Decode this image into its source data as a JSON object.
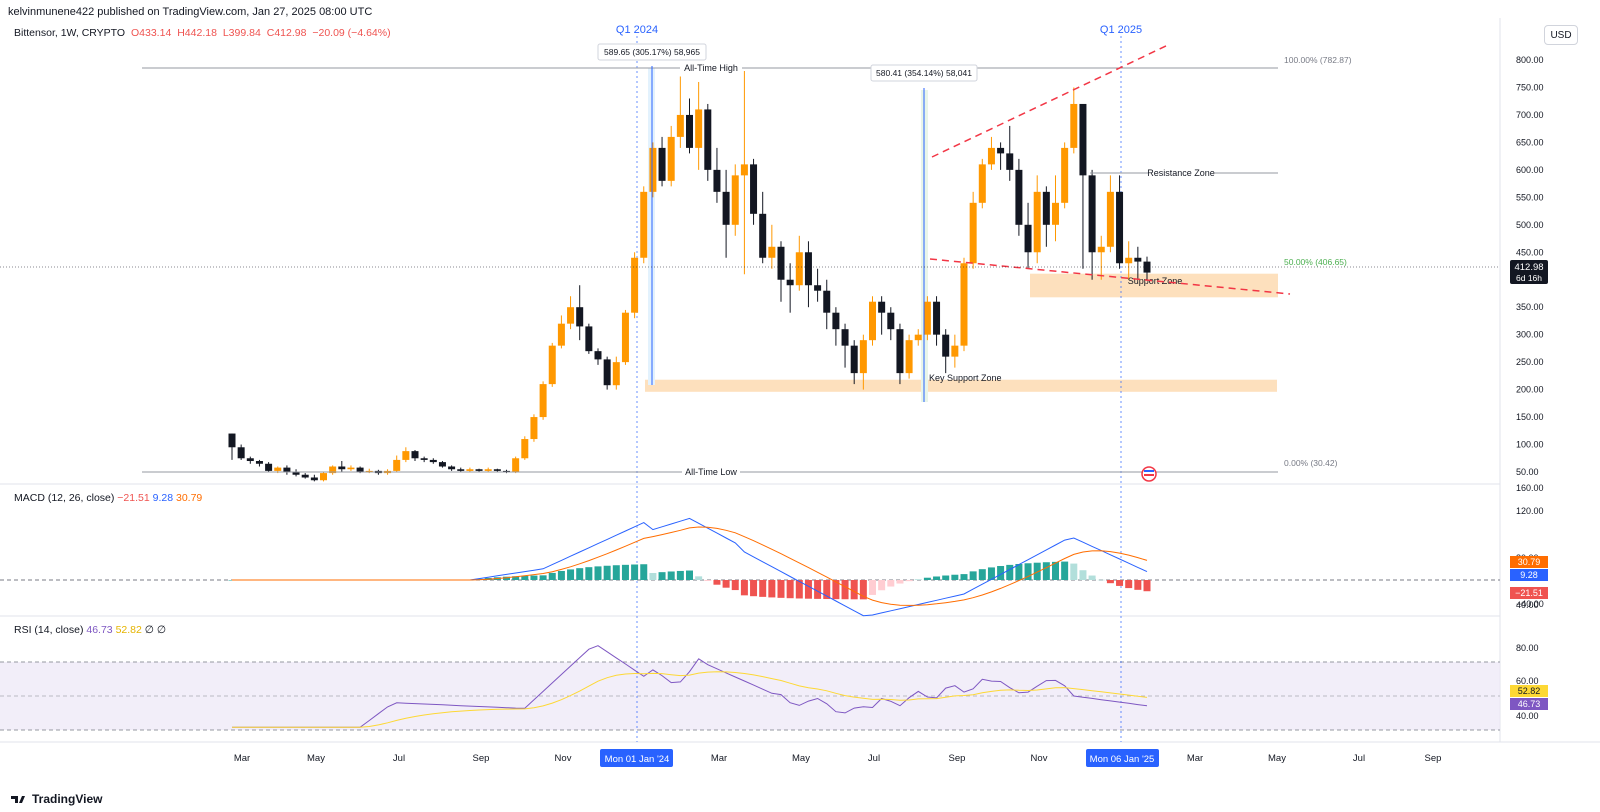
{
  "header": {
    "published_line": "kelvinmunene422 published on TradingView.com, Jan 27, 2025 08:00 UTC"
  },
  "legend": {
    "symbol": "Bittensor, 1W, CRYPTO",
    "open": "O433.14",
    "high": "H442.18",
    "low": "L399.84",
    "close": "C412.98",
    "change": "−20.09 (−4.64%)"
  },
  "currency": "USD",
  "macd": {
    "label": "MACD (12, 26, close)",
    "hist": "−21.51",
    "macd": "9.28",
    "signal": "30.79",
    "ticks": [
      "160.00",
      "120.00",
      "80.00",
      "40.00",
      "−40.00"
    ],
    "badges": {
      "signal": "30.79",
      "macd": "9.28",
      "hist": "−21.51"
    }
  },
  "rsi": {
    "label": "RSI (14, close)",
    "rsi": "46.73",
    "ma": "52.82",
    "extra1": "∅",
    "extra2": "∅",
    "ticks": [
      "80.00",
      "60.00",
      "40.00"
    ],
    "badges": {
      "ma": "52.82",
      "rsi": "46.73"
    }
  },
  "price_axis": {
    "ticks": [
      "800.00",
      "750.00",
      "700.00",
      "650.00",
      "600.00",
      "550.00",
      "500.00",
      "450.00",
      "400.00",
      "350.00",
      "300.00",
      "250.00",
      "200.00",
      "150.00",
      "100.00",
      "50.00"
    ],
    "last_price": "412.98",
    "countdown": "6d 16h"
  },
  "time_axis": {
    "labels": [
      "Mar",
      "May",
      "Jul",
      "Sep",
      "Nov",
      "Mar",
      "May",
      "Jul",
      "Sep",
      "Nov",
      "Mar",
      "May",
      "Jul",
      "Sep"
    ],
    "highlight_left": "Mon 01 Jan '24",
    "highlight_right": "Mon 06 Jan '25"
  },
  "annotations": {
    "q1_2024": "Q1 2024",
    "q1_2025": "Q1 2025",
    "measure1": "589.65 (305.17%) 58,965",
    "measure2": "580.41 (354.14%) 58,041",
    "all_time_high": "All-Time High",
    "all_time_low": "All-Time Low",
    "resistance_zone": "Resistance Zone",
    "support_zone": "Support Zone",
    "key_support_zone": "Key Support Zone",
    "fib_100": "100.00% (782.87)",
    "fib_50": "50.00% (406.65)",
    "fib_0": "0.00% (30.42)"
  },
  "footer": {
    "brand": "TradingView"
  },
  "colors": {
    "up": "#ff9800",
    "down": "#131722",
    "macd_line": "#2962ff",
    "signal_line": "#ff6d00",
    "hist_pos_strong": "#26a69a",
    "hist_pos_weak": "#b2dfdb",
    "hist_neg_strong": "#ef5350",
    "hist_neg_weak": "#ffcdd2",
    "rsi_line": "#7e57c2",
    "rsi_ma": "#fdd835",
    "zone_fill": "#fde0bd",
    "trend_dash": "#f23645",
    "highlight_blue": "#2962ff"
  },
  "chart_data": {
    "type": "candlestick",
    "title": "Bittensor, 1W, CRYPTO",
    "ylim": [
      30,
      820
    ],
    "candles": [
      [
        120,
        95,
        120,
        72
      ],
      [
        95,
        75,
        100,
        72
      ],
      [
        75,
        70,
        78,
        65
      ],
      [
        70,
        65,
        72,
        60
      ],
      [
        65,
        52,
        68,
        50
      ],
      [
        52,
        58,
        60,
        48
      ],
      [
        58,
        50,
        62,
        45
      ],
      [
        50,
        45,
        55,
        42
      ],
      [
        45,
        40,
        48,
        38
      ],
      [
        40,
        35,
        45,
        33
      ],
      [
        35,
        48,
        50,
        33
      ],
      [
        48,
        60,
        62,
        45
      ],
      [
        60,
        55,
        70,
        50
      ],
      [
        55,
        58,
        62,
        52
      ],
      [
        58,
        50,
        60,
        48
      ],
      [
        50,
        52,
        56,
        48
      ],
      [
        52,
        48,
        54,
        45
      ],
      [
        48,
        52,
        55,
        45
      ],
      [
        52,
        72,
        80,
        50
      ],
      [
        72,
        88,
        95,
        68
      ],
      [
        88,
        75,
        90,
        70
      ],
      [
        75,
        72,
        78,
        68
      ],
      [
        72,
        68,
        75,
        65
      ],
      [
        68,
        60,
        70,
        58
      ],
      [
        60,
        55,
        62,
        52
      ],
      [
        55,
        52,
        58,
        50
      ],
      [
        52,
        55,
        58,
        50
      ],
      [
        55,
        52,
        56,
        50
      ],
      [
        52,
        55,
        58,
        50
      ],
      [
        55,
        52,
        56,
        50
      ],
      [
        52,
        50,
        54,
        48
      ],
      [
        50,
        75,
        78,
        48
      ],
      [
        75,
        110,
        115,
        72
      ],
      [
        110,
        150,
        155,
        105
      ],
      [
        150,
        210,
        215,
        145
      ],
      [
        210,
        280,
        285,
        205
      ],
      [
        280,
        320,
        335,
        275
      ],
      [
        320,
        350,
        370,
        310
      ],
      [
        350,
        315,
        390,
        290
      ],
      [
        315,
        270,
        320,
        265
      ],
      [
        270,
        255,
        275,
        245
      ],
      [
        255,
        208,
        260,
        200
      ],
      [
        208,
        250,
        260,
        200
      ],
      [
        250,
        340,
        345,
        245
      ],
      [
        340,
        440,
        450,
        330
      ],
      [
        440,
        560,
        570,
        430
      ],
      [
        560,
        640,
        650,
        550
      ],
      [
        640,
        580,
        660,
        570
      ],
      [
        580,
        660,
        680,
        570
      ],
      [
        660,
        700,
        770,
        640
      ],
      [
        700,
        640,
        730,
        630
      ],
      [
        640,
        710,
        760,
        600
      ],
      [
        710,
        600,
        720,
        580
      ],
      [
        600,
        560,
        640,
        540
      ],
      [
        560,
        500,
        600,
        440
      ],
      [
        500,
        590,
        610,
        480
      ],
      [
        590,
        610,
        780,
        410
      ],
      [
        610,
        520,
        620,
        500
      ],
      [
        520,
        440,
        560,
        430
      ],
      [
        440,
        460,
        500,
        420
      ],
      [
        460,
        400,
        470,
        360
      ],
      [
        400,
        390,
        430,
        340
      ],
      [
        390,
        450,
        480,
        380
      ],
      [
        450,
        390,
        470,
        350
      ],
      [
        390,
        380,
        420,
        360
      ],
      [
        380,
        340,
        400,
        310
      ],
      [
        340,
        310,
        350,
        280
      ],
      [
        310,
        280,
        320,
        240
      ],
      [
        280,
        230,
        290,
        210
      ],
      [
        230,
        290,
        300,
        200
      ],
      [
        290,
        360,
        370,
        280
      ],
      [
        360,
        340,
        370,
        300
      ],
      [
        340,
        310,
        350,
        290
      ],
      [
        310,
        230,
        320,
        210
      ],
      [
        230,
        290,
        300,
        220
      ],
      [
        290,
        300,
        310,
        280
      ],
      [
        300,
        360,
        370,
        290
      ],
      [
        360,
        300,
        370,
        280
      ],
      [
        300,
        260,
        310,
        230
      ],
      [
        260,
        280,
        300,
        240
      ],
      [
        280,
        430,
        440,
        270
      ],
      [
        430,
        540,
        560,
        420
      ],
      [
        540,
        610,
        620,
        530
      ],
      [
        610,
        640,
        660,
        600
      ],
      [
        640,
        630,
        650,
        600
      ],
      [
        630,
        600,
        680,
        580
      ],
      [
        600,
        500,
        620,
        480
      ],
      [
        500,
        450,
        540,
        420
      ],
      [
        450,
        560,
        590,
        430
      ],
      [
        560,
        500,
        570,
        460
      ],
      [
        500,
        540,
        590,
        470
      ],
      [
        540,
        640,
        650,
        530
      ],
      [
        640,
        720,
        750,
        630
      ],
      [
        720,
        590,
        720,
        420
      ],
      [
        590,
        450,
        600,
        400
      ],
      [
        450,
        460,
        480,
        400
      ],
      [
        460,
        560,
        590,
        450
      ],
      [
        560,
        430,
        590,
        420
      ],
      [
        430,
        440,
        470,
        400
      ],
      [
        440,
        433,
        460,
        400
      ],
      [
        433,
        413,
        442,
        400
      ]
    ],
    "macd_series": "MACD (12, 26, close)",
    "rsi_series": "RSI (14, close)",
    "levels": {
      "fib_100": 782.87,
      "fib_50": 406.65,
      "fib_0": 30.42,
      "all_time_high": 782.87,
      "all_time_low": 30.42
    }
  }
}
